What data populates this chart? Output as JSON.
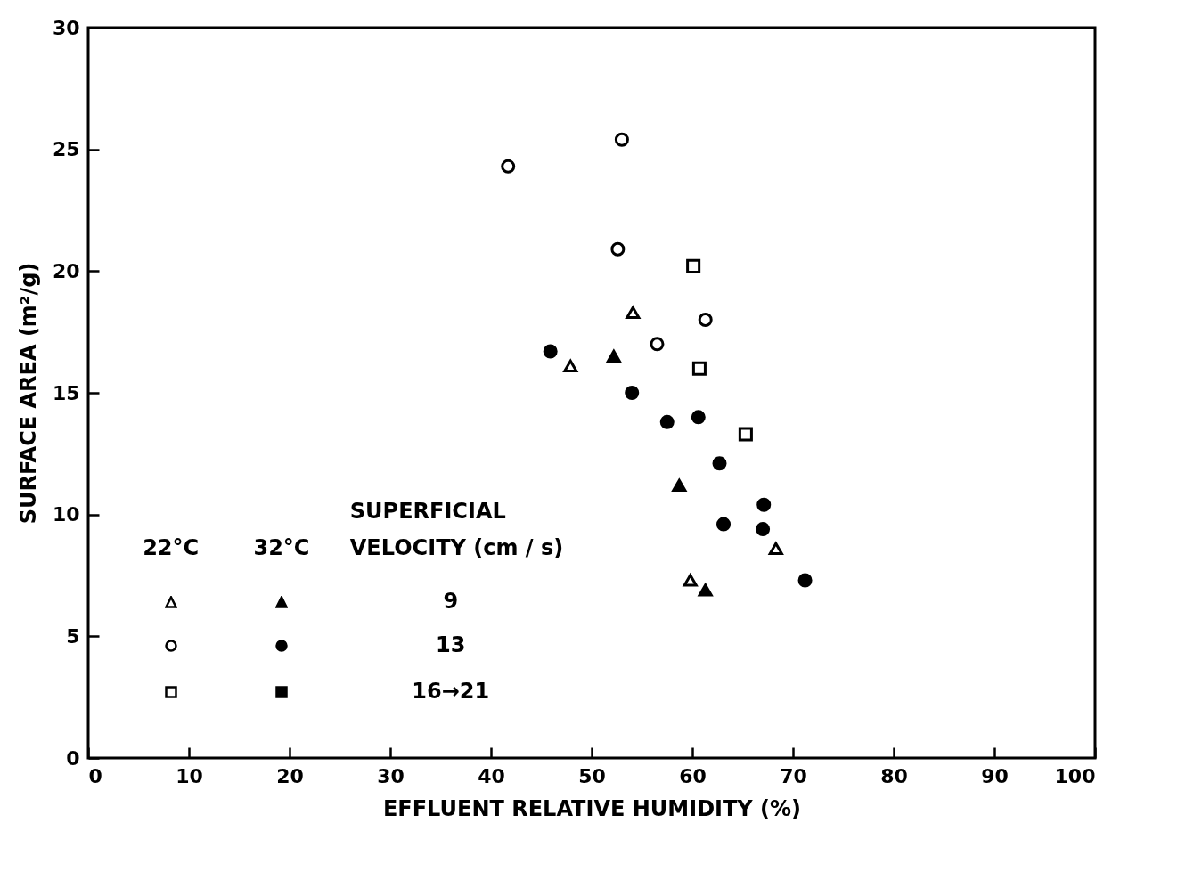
{
  "chart_data": {
    "type": "scatter",
    "xlabel": "EFFLUENT RELATIVE HUMIDITY (%)",
    "ylabel": "SURFACE AREA (m²/g)",
    "xlim": [
      0,
      100
    ],
    "ylim": [
      0,
      30
    ],
    "xticks": [
      0,
      10,
      20,
      30,
      40,
      50,
      60,
      70,
      80,
      90,
      100
    ],
    "yticks": [
      0,
      5,
      10,
      15,
      20,
      25,
      30
    ],
    "grid": false,
    "legend_title": "SUPERFICIAL VELOCITY (cm / s)",
    "annotations": [
      "22°C",
      "32°C",
      "9",
      "13",
      "16→21"
    ],
    "series": [
      {
        "marker": "triangle",
        "color": "#ffffff",
        "x": [
          54.1,
          47.9,
          59.8,
          68.3
        ],
        "values": [
          18.3,
          16.1,
          7.3,
          8.6
        ]
      },
      {
        "marker": "circle",
        "color": "#ffffff",
        "x": [
          41.7,
          53.0,
          52.6,
          56.5,
          61.3
        ],
        "values": [
          24.3,
          25.4,
          20.9,
          17.0,
          18.0
        ]
      },
      {
        "marker": "square",
        "color": "#ffffff",
        "x": [
          60.1,
          60.7,
          65.3
        ],
        "values": [
          20.2,
          16.0,
          13.3
        ]
      },
      {
        "marker": "triangle",
        "color": "#000000",
        "x": [
          52.2,
          58.7,
          61.3
        ],
        "values": [
          16.5,
          11.2,
          6.9
        ]
      },
      {
        "marker": "circle",
        "color": "#000000",
        "x": [
          45.9,
          54.0,
          57.5,
          60.6,
          62.7,
          67.1,
          63.1,
          67.0,
          71.2
        ],
        "values": [
          16.7,
          15.0,
          13.8,
          14.0,
          12.1,
          10.4,
          9.6,
          9.4,
          7.3
        ]
      }
    ]
  }
}
